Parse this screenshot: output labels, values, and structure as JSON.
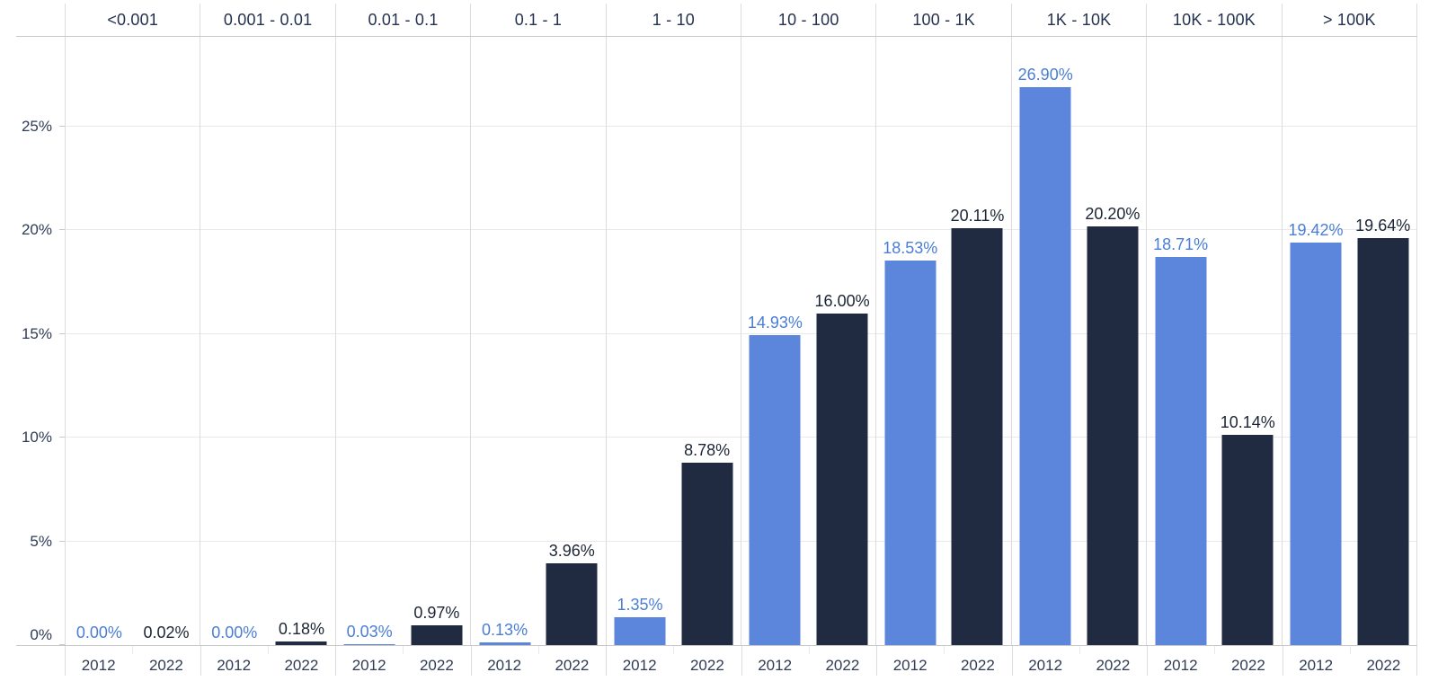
{
  "chart_data": {
    "type": "bar",
    "title": "",
    "categories": [
      "<0.001",
      "0.001 - 0.01",
      "0.01 - 0.1",
      "0.1 - 1",
      "1 - 10",
      "10 - 100",
      "100 - 1K",
      "1K - 10K",
      "10K - 100K",
      "> 100K"
    ],
    "series": [
      {
        "name": "2012",
        "color": "#5c86db",
        "label_color": "#4a7ed6",
        "values": [
          0.0,
          0.0,
          0.03,
          0.13,
          1.35,
          14.93,
          18.53,
          26.9,
          18.71,
          19.42
        ]
      },
      {
        "name": "2022",
        "color": "#202b42",
        "label_color": "#1c2535",
        "values": [
          0.02,
          0.18,
          0.97,
          3.96,
          8.78,
          16.0,
          20.11,
          20.2,
          10.14,
          19.64
        ]
      }
    ],
    "value_format": {
      "decimals": 2,
      "suffix": "%"
    },
    "y_axis": {
      "tick_labels": [
        "0%",
        "5%",
        "10%",
        "15%",
        "20%",
        "25%"
      ],
      "tick_values": [
        0,
        5,
        10,
        15,
        20,
        25
      ],
      "range": [
        0,
        29.3
      ]
    },
    "grid": true,
    "legend_position": "none"
  },
  "colors": {
    "background": "#ffffff",
    "grid": "#e9e9e9",
    "separator": "#dcdcdc",
    "axis_line": "#c8c8c8",
    "header_text": "#243250",
    "axis_text": "#2e3c55"
  }
}
